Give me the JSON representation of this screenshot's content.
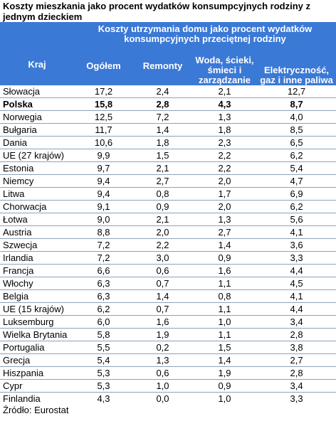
{
  "title": "Koszty mieszkania jako procent wydatków konsumpcyjnych rodziny z jednym dzieckiem",
  "header": {
    "country": "Kraj",
    "group": "Koszty utrzymania domu jako procent wydatków konsumpcyjnych przeciętnej rodziny",
    "columns": [
      "Ogółem",
      "Remonty",
      "Woda, ścieki, śmieci i zarządzanie",
      "Elektryczność, gaz i inne paliwa"
    ]
  },
  "rows": [
    {
      "country": "Słowacja",
      "total": "17,2",
      "repairs": "2,4",
      "water": "2,1",
      "energy": "12,7",
      "bold": false
    },
    {
      "country": "Polska",
      "total": "15,8",
      "repairs": "2,8",
      "water": "4,3",
      "energy": "8,7",
      "bold": true
    },
    {
      "country": "Norwegia",
      "total": "12,5",
      "repairs": "7,2",
      "water": "1,3",
      "energy": "4,0",
      "bold": false
    },
    {
      "country": "Bułgaria",
      "total": "11,7",
      "repairs": "1,4",
      "water": "1,8",
      "energy": "8,5",
      "bold": false
    },
    {
      "country": "Dania",
      "total": "10,6",
      "repairs": "1,8",
      "water": "2,3",
      "energy": "6,5",
      "bold": false
    },
    {
      "country": "UE (27 krajów)",
      "total": "9,9",
      "repairs": "1,5",
      "water": "2,2",
      "energy": "6,2",
      "bold": false
    },
    {
      "country": "Estonia",
      "total": "9,7",
      "repairs": "2,1",
      "water": "2,2",
      "energy": "5,4",
      "bold": false
    },
    {
      "country": "Niemcy",
      "total": "9,4",
      "repairs": "2,7",
      "water": "2,0",
      "energy": "4,7",
      "bold": false
    },
    {
      "country": "Litwa",
      "total": "9,4",
      "repairs": "0,8",
      "water": "1,7",
      "energy": "6,9",
      "bold": false
    },
    {
      "country": "Chorwacja",
      "total": "9,1",
      "repairs": "0,9",
      "water": "2,0",
      "energy": "6,2",
      "bold": false
    },
    {
      "country": "Łotwa",
      "total": "9,0",
      "repairs": "2,1",
      "water": "1,3",
      "energy": "5,6",
      "bold": false
    },
    {
      "country": "Austria",
      "total": "8,8",
      "repairs": "2,0",
      "water": "2,7",
      "energy": "4,1",
      "bold": false
    },
    {
      "country": "Szwecja",
      "total": "7,2",
      "repairs": "2,2",
      "water": "1,4",
      "energy": "3,6",
      "bold": false
    },
    {
      "country": "Irlandia",
      "total": "7,2",
      "repairs": "3,0",
      "water": "0,9",
      "energy": "3,3",
      "bold": false
    },
    {
      "country": "Francja",
      "total": "6,6",
      "repairs": "0,6",
      "water": "1,6",
      "energy": "4,4",
      "bold": false
    },
    {
      "country": "Włochy",
      "total": "6,3",
      "repairs": "0,7",
      "water": "1,1",
      "energy": "4,5",
      "bold": false
    },
    {
      "country": "Belgia",
      "total": "6,3",
      "repairs": "1,4",
      "water": "0,8",
      "energy": "4,1",
      "bold": false
    },
    {
      "country": "UE (15 krajów)",
      "total": "6,2",
      "repairs": "0,7",
      "water": "1,1",
      "energy": "4,4",
      "bold": false
    },
    {
      "country": "Luksemburg",
      "total": "6,0",
      "repairs": "1,6",
      "water": "1,0",
      "energy": "3,4",
      "bold": false
    },
    {
      "country": "Wielka Brytania",
      "total": "5,8",
      "repairs": "1,9",
      "water": "1,1",
      "energy": "2,8",
      "bold": false
    },
    {
      "country": "Portugalia",
      "total": "5,5",
      "repairs": "0,2",
      "water": "1,5",
      "energy": "3,8",
      "bold": false
    },
    {
      "country": "Grecja",
      "total": "5,4",
      "repairs": "1,3",
      "water": "1,4",
      "energy": "2,7",
      "bold": false
    },
    {
      "country": "Hiszpania",
      "total": "5,3",
      "repairs": "0,6",
      "water": "1,9",
      "energy": "2,8",
      "bold": false
    },
    {
      "country": "Cypr",
      "total": "5,3",
      "repairs": "1,0",
      "water": "0,9",
      "energy": "3,4",
      "bold": false
    },
    {
      "country": "Finlandia",
      "total": "4,3",
      "repairs": "0,0",
      "water": "1,0",
      "energy": "3,3",
      "bold": false
    }
  ],
  "source": "Źródło: Eurostat",
  "colors": {
    "header_bg": "#3b79d6",
    "header_text": "#ffffff",
    "row_border": "#8aa2bd"
  }
}
